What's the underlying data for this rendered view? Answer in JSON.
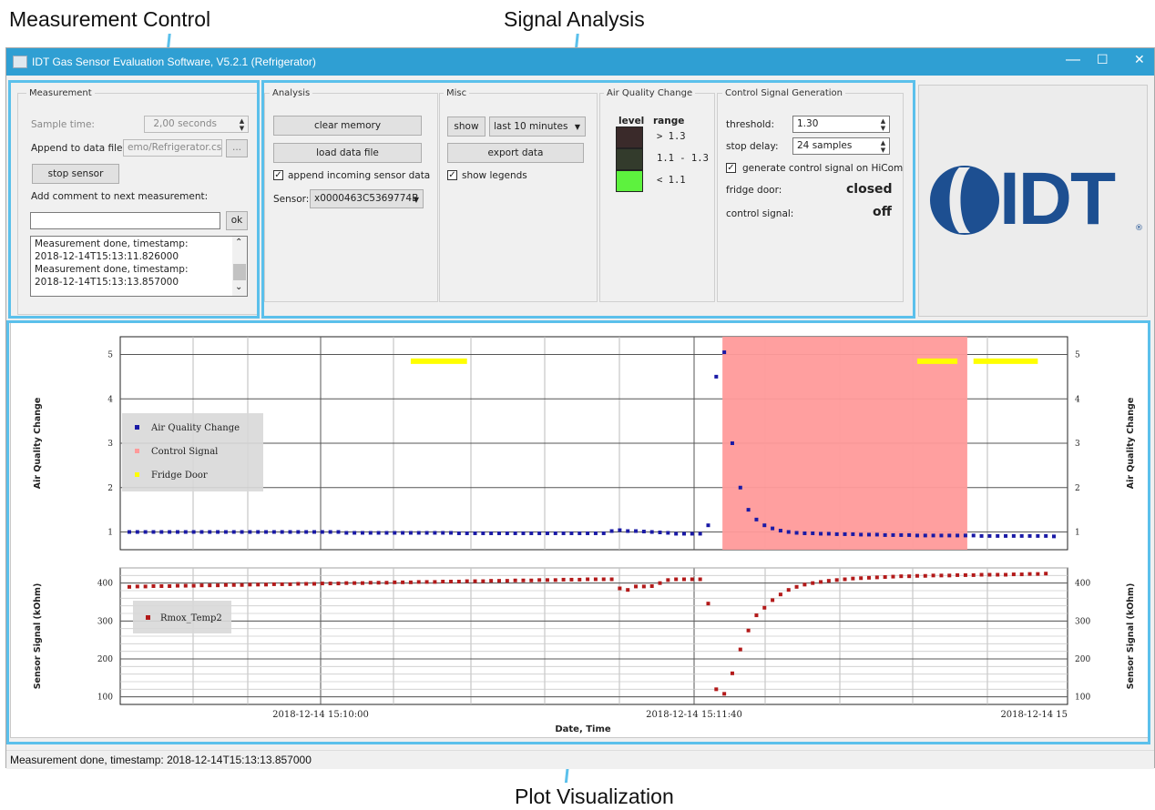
{
  "annotations": {
    "measurement_control": "Measurement Control",
    "signal_analysis": "Signal Analysis",
    "plot_visualization": "Plot Visualization"
  },
  "window": {
    "title": "IDT Gas Sensor Evaluation Software, V5.2.1 (Refrigerator)",
    "controls": {
      "minimize": "—",
      "maximize": "☐",
      "close": "✕"
    }
  },
  "measurement": {
    "group_title": "Measurement",
    "sample_time_label": "Sample time:",
    "sample_time_value": "2,00 seconds",
    "append_label": "Append to data file:",
    "append_value": "emo/Refrigerator.csv",
    "browse_label": "...",
    "stop_button": "stop sensor",
    "comment_label": "Add comment to next measurement:",
    "comment_value": "",
    "ok_button": "ok",
    "log": [
      "Measurement done, timestamp:",
      "2018-12-14T15:13:11.826000",
      "Measurement done, timestamp:",
      "2018-12-14T15:13:13.857000"
    ]
  },
  "analysis": {
    "group_title": "Analysis",
    "clear_button": "clear memory",
    "load_button": "load data file",
    "append_checkbox": "append incoming sensor data",
    "append_checked": true,
    "sensor_label": "Sensor:",
    "sensor_value": "x0000463C5369774B"
  },
  "misc": {
    "group_title": "Misc",
    "show_button": "show",
    "range_value": "last 10 minutes",
    "export_button": "export data",
    "legends_checkbox": "show legends",
    "legends_checked": true
  },
  "aqc": {
    "group_title": "Air Quality Change",
    "level_header": "level",
    "range_header": "range",
    "levels": [
      {
        "range": "> 1.3",
        "color": "#3a2a2a"
      },
      {
        "range": "1.1 - 1.3",
        "color": "#333b2c"
      },
      {
        "range": "< 1.1",
        "color": "#5df23e"
      }
    ]
  },
  "control": {
    "group_title": "Control Signal Generation",
    "threshold_label": "threshold:",
    "threshold_value": "1.30",
    "stop_delay_label": "stop delay:",
    "stop_delay_value": "24 samples",
    "generate_checkbox": "generate control signal on HiCom",
    "generate_checked": true,
    "fridge_label": "fridge door:",
    "fridge_value": "closed",
    "signal_label": "control signal:",
    "signal_value": "off"
  },
  "logo": {
    "text": "IDT",
    "mark": "®",
    "color": "#1d4f91"
  },
  "status": {
    "text": "Measurement done, timestamp: 2018-12-14T15:13:13.857000"
  },
  "chart_data": [
    {
      "type": "scatter",
      "ylabel": "Air Quality Change",
      "ylim": [
        0.6,
        5.4
      ],
      "yticks": [
        1,
        2,
        3,
        4,
        5
      ],
      "grid": true,
      "legend_position": "left",
      "series": [
        {
          "name": "Air Quality Change",
          "color": "#1a1aa6",
          "values": [
            1.0,
            1.0,
            1.0,
            1.0,
            1.0,
            1.0,
            1.0,
            1.0,
            1.0,
            1.0,
            1.0,
            1.0,
            1.0,
            1.0,
            1.0,
            1.0,
            1.0,
            1.0,
            1.0,
            1.0,
            1.0,
            1.0,
            1.0,
            1.0,
            1.0,
            1.0,
            1.0,
            0.98,
            0.98,
            0.98,
            0.98,
            0.98,
            0.98,
            0.98,
            0.98,
            0.98,
            0.98,
            0.98,
            0.98,
            0.98,
            0.98,
            0.97,
            0.97,
            0.97,
            0.97,
            0.97,
            0.97,
            0.97,
            0.97,
            0.97,
            0.97,
            0.97,
            0.97,
            0.97,
            0.97,
            0.97,
            0.97,
            0.97,
            0.97,
            0.97,
            1.02,
            1.04,
            1.02,
            1.02,
            1.01,
            1.0,
            0.99,
            0.98,
            0.96,
            0.96,
            0.96,
            0.96,
            1.15,
            4.5,
            5.05,
            3.0,
            2.0,
            1.5,
            1.28,
            1.15,
            1.08,
            1.03,
            1.0,
            0.98,
            0.97,
            0.97,
            0.96,
            0.96,
            0.95,
            0.95,
            0.95,
            0.94,
            0.94,
            0.94,
            0.93,
            0.93,
            0.93,
            0.93,
            0.92,
            0.92,
            0.92,
            0.92,
            0.92,
            0.92,
            0.92,
            0.92,
            0.91,
            0.91,
            0.91,
            0.91,
            0.91,
            0.91,
            0.91,
            0.91,
            0.91,
            0.9
          ]
        },
        {
          "name": "Control Signal",
          "color": "#ff9a9a",
          "values": [],
          "active_from_index": 74,
          "active_to_index": 104
        },
        {
          "name": "Fridge Door",
          "color": "#ffff00",
          "values": [],
          "open_intervals": [
            [
              35,
              42
            ],
            [
              98,
              103
            ],
            [
              105,
              113
            ]
          ],
          "marker_value": 4.85
        }
      ]
    },
    {
      "type": "scatter",
      "xlabel": "Date, Time",
      "ylabel": "Sensor Signal (kOhm)",
      "ylim": [
        80,
        440
      ],
      "yticks": [
        100,
        200,
        300,
        400
      ],
      "x_tick_labels": [
        "2018-12-14 15:10:00",
        "2018-12-14 15:11:40",
        "2018-12-14 15"
      ],
      "grid": true,
      "legend_position": "left",
      "series": [
        {
          "name": "Rmox_Temp2",
          "color": "#b31a1a",
          "values": [
            390,
            391,
            391,
            392,
            392,
            392,
            393,
            393,
            393,
            394,
            394,
            394,
            395,
            395,
            395,
            396,
            396,
            396,
            397,
            397,
            397,
            398,
            398,
            398,
            399,
            399,
            399,
            400,
            400,
            400,
            401,
            401,
            401,
            402,
            402,
            402,
            403,
            403,
            403,
            404,
            404,
            404,
            405,
            405,
            405,
            406,
            406,
            406,
            407,
            407,
            407,
            408,
            408,
            408,
            409,
            409,
            409,
            410,
            410,
            410,
            410,
            386,
            382,
            391,
            391,
            392,
            400,
            408,
            410,
            410,
            410,
            410,
            346,
            120,
            108,
            162,
            225,
            275,
            315,
            335,
            355,
            370,
            382,
            390,
            396,
            400,
            403,
            406,
            408,
            410,
            412,
            413,
            414,
            415,
            416,
            417,
            418,
            418,
            419,
            419,
            420,
            420,
            420,
            421,
            421,
            421,
            422,
            422,
            422,
            422,
            423,
            423,
            424,
            424,
            425
          ]
        }
      ]
    }
  ]
}
